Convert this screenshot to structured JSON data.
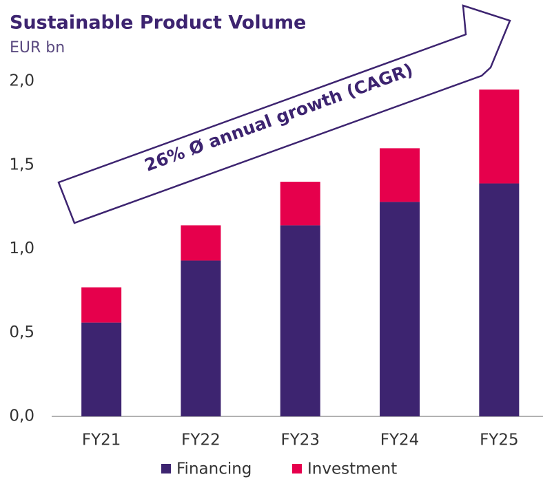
{
  "chart_data": {
    "type": "stacked_bar",
    "title": "Sustainable Product Volume",
    "subtitle": "EUR bn",
    "annotation": "26% Ø annual growth (CAGR)",
    "categories": [
      "FY21",
      "FY22",
      "FY23",
      "FY24",
      "FY25"
    ],
    "series": [
      {
        "name": "Financing",
        "color": "#3d2470",
        "values": [
          0.56,
          0.93,
          1.14,
          1.28,
          1.39
        ]
      },
      {
        "name": "Investment",
        "color": "#e6004c",
        "values": [
          0.21,
          0.21,
          0.26,
          0.32,
          0.56
        ]
      }
    ],
    "ylim": [
      0,
      2
    ],
    "yticks": [
      {
        "value": 0,
        "label": "0,0"
      },
      {
        "value": 0.5,
        "label": "0,5"
      },
      {
        "value": 1,
        "label": "1,0"
      },
      {
        "value": 1.5,
        "label": "1,5"
      },
      {
        "value": 2,
        "label": "2,0"
      }
    ],
    "grid": false
  }
}
